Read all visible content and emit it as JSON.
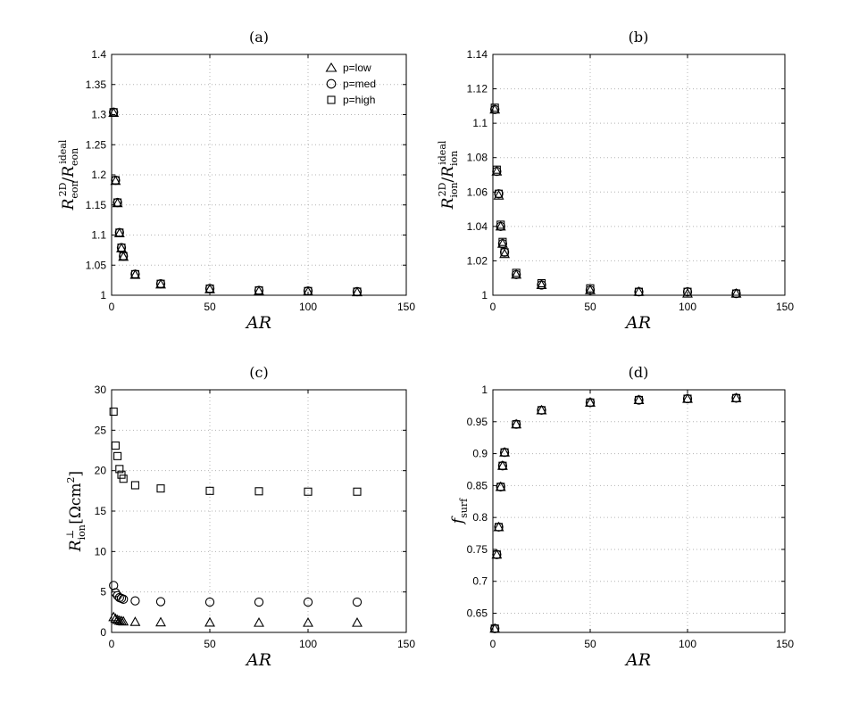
{
  "chart_data": [
    {
      "type": "scatter",
      "title": "(a)",
      "xlabel": "AR",
      "ylabel": "R_eon^2D / R_eon^ideal",
      "xlim": [
        0,
        150
      ],
      "ylim": [
        1,
        1.4
      ],
      "xticks": [
        0,
        50,
        100,
        150
      ],
      "xtick_labels": [
        "0",
        "50",
        "100",
        "150"
      ],
      "yticks": [
        1,
        1.05,
        1.1,
        1.15,
        1.2,
        1.25,
        1.3,
        1.35,
        1.4
      ],
      "ytick_labels": [
        "1",
        "1.05",
        "1.1",
        "1.15",
        "1.2",
        "1.25",
        "1.3",
        "1.35",
        "1.4"
      ],
      "grid": true,
      "legend": "top-right",
      "series": [
        {
          "name": "p=low",
          "marker": "triangle",
          "x": [
            1,
            2,
            3,
            4,
            5,
            6,
            12,
            25,
            50,
            75,
            100,
            125
          ],
          "y": [
            1.303,
            1.19,
            1.153,
            1.103,
            1.078,
            1.064,
            1.034,
            1.018,
            1.01,
            1.007,
            1.006,
            1.005
          ]
        },
        {
          "name": "p=med",
          "marker": "circle",
          "x": [
            1,
            2,
            3,
            4,
            5,
            6,
            12,
            25,
            50,
            75,
            100,
            125
          ],
          "y": [
            1.304,
            1.191,
            1.154,
            1.104,
            1.079,
            1.065,
            1.035,
            1.019,
            1.011,
            1.008,
            1.007,
            1.006
          ]
        },
        {
          "name": "p=high",
          "marker": "square",
          "x": [
            1,
            2,
            3,
            4,
            5,
            6,
            12,
            25,
            50,
            75,
            100,
            125
          ],
          "y": [
            1.304,
            1.191,
            1.154,
            1.104,
            1.079,
            1.065,
            1.035,
            1.019,
            1.011,
            1.008,
            1.007,
            1.006
          ]
        }
      ]
    },
    {
      "type": "scatter",
      "title": "(b)",
      "xlabel": "AR",
      "ylabel": "R_ion^2D / R_ion^ideal",
      "xlim": [
        0,
        150
      ],
      "ylim": [
        1,
        1.14
      ],
      "xticks": [
        0,
        50,
        100,
        150
      ],
      "xtick_labels": [
        "0",
        "50",
        "100",
        "150"
      ],
      "yticks": [
        1,
        1.02,
        1.04,
        1.06,
        1.08,
        1.1,
        1.12,
        1.14
      ],
      "ytick_labels": [
        "1",
        "1.02",
        "1.04",
        "1.06",
        "1.08",
        "1.1",
        "1.12",
        "1.14"
      ],
      "grid": true,
      "series": [
        {
          "name": "p=low",
          "marker": "triangle",
          "x": [
            1,
            2,
            3,
            4,
            5,
            6,
            12,
            25,
            50,
            75,
            100,
            125
          ],
          "y": [
            1.108,
            1.072,
            1.058,
            1.04,
            1.03,
            1.024,
            1.012,
            1.006,
            1.003,
            1.002,
            1.001,
            1.001
          ]
        },
        {
          "name": "p=med",
          "marker": "circle",
          "x": [
            1,
            2,
            3,
            4,
            5,
            6,
            12,
            25,
            50,
            75,
            100,
            125
          ],
          "y": [
            1.108,
            1.072,
            1.059,
            1.04,
            1.03,
            1.025,
            1.012,
            1.006,
            1.003,
            1.002,
            1.002,
            1.001
          ]
        },
        {
          "name": "p=high",
          "marker": "square",
          "x": [
            1,
            2,
            3,
            4,
            5,
            6,
            12,
            25,
            50,
            75,
            100,
            125
          ],
          "y": [
            1.109,
            1.073,
            1.059,
            1.041,
            1.031,
            1.025,
            1.013,
            1.007,
            1.004,
            1.002,
            1.002,
            1.001
          ]
        }
      ]
    },
    {
      "type": "scatter",
      "title": "(c)",
      "xlabel": "AR",
      "ylabel": "R_ion^⊥ [Ωcm^2]",
      "xlim": [
        0,
        150
      ],
      "ylim": [
        0,
        30
      ],
      "xticks": [
        0,
        50,
        100,
        150
      ],
      "xtick_labels": [
        "0",
        "50",
        "100",
        "150"
      ],
      "yticks": [
        0,
        5,
        10,
        15,
        20,
        25,
        30
      ],
      "ytick_labels": [
        "0",
        "5",
        "10",
        "15",
        "20",
        "25",
        "30"
      ],
      "grid": true,
      "series": [
        {
          "name": "p=low",
          "marker": "triangle",
          "x": [
            1,
            2,
            3,
            4,
            5,
            6,
            12,
            25,
            50,
            75,
            100,
            125
          ],
          "y": [
            1.9,
            1.7,
            1.55,
            1.45,
            1.4,
            1.35,
            1.3,
            1.25,
            1.22,
            1.2,
            1.2,
            1.2
          ]
        },
        {
          "name": "p=med",
          "marker": "circle",
          "x": [
            1,
            2,
            3,
            4,
            5,
            6,
            12,
            25,
            50,
            75,
            100,
            125
          ],
          "y": [
            5.8,
            4.9,
            4.55,
            4.3,
            4.2,
            4.1,
            3.9,
            3.8,
            3.75,
            3.75,
            3.75,
            3.75
          ]
        },
        {
          "name": "p=high",
          "marker": "square",
          "x": [
            1,
            2,
            3,
            4,
            5,
            6,
            12,
            25,
            50,
            75,
            100,
            125
          ],
          "y": [
            27.3,
            23.1,
            21.8,
            20.2,
            19.5,
            19.0,
            18.2,
            17.8,
            17.5,
            17.45,
            17.4,
            17.4
          ]
        }
      ]
    },
    {
      "type": "scatter",
      "title": "(d)",
      "xlabel": "AR",
      "ylabel": "f_surf",
      "xlim": [
        0,
        150
      ],
      "ylim": [
        0.62,
        1
      ],
      "xticks": [
        0,
        50,
        100,
        150
      ],
      "xtick_labels": [
        "0",
        "50",
        "100",
        "150"
      ],
      "yticks": [
        0.65,
        0.7,
        0.75,
        0.8,
        0.85,
        0.9,
        0.95,
        1
      ],
      "ytick_labels": [
        "0.65",
        "0.7",
        "0.75",
        "0.8",
        "0.85",
        "0.9",
        "0.95",
        "1"
      ],
      "grid": true,
      "series": [
        {
          "name": "p=low",
          "marker": "triangle",
          "x": [
            1,
            2,
            3,
            4,
            5,
            6,
            12,
            25,
            50,
            75,
            100,
            125
          ],
          "y": [
            0.626,
            0.742,
            0.785,
            0.848,
            0.881,
            0.902,
            0.946,
            0.968,
            0.98,
            0.984,
            0.986,
            0.987
          ]
        },
        {
          "name": "p=med",
          "marker": "circle",
          "x": [
            1,
            2,
            3,
            4,
            5,
            6,
            12,
            25,
            50,
            75,
            100,
            125
          ],
          "y": [
            0.626,
            0.742,
            0.785,
            0.848,
            0.881,
            0.902,
            0.946,
            0.968,
            0.98,
            0.984,
            0.986,
            0.987
          ]
        },
        {
          "name": "p=high",
          "marker": "square",
          "x": [
            1,
            2,
            3,
            4,
            5,
            6,
            12,
            25,
            50,
            75,
            100,
            125
          ],
          "y": [
            0.626,
            0.742,
            0.785,
            0.848,
            0.881,
            0.902,
            0.946,
            0.968,
            0.98,
            0.984,
            0.986,
            0.987
          ]
        }
      ]
    }
  ]
}
